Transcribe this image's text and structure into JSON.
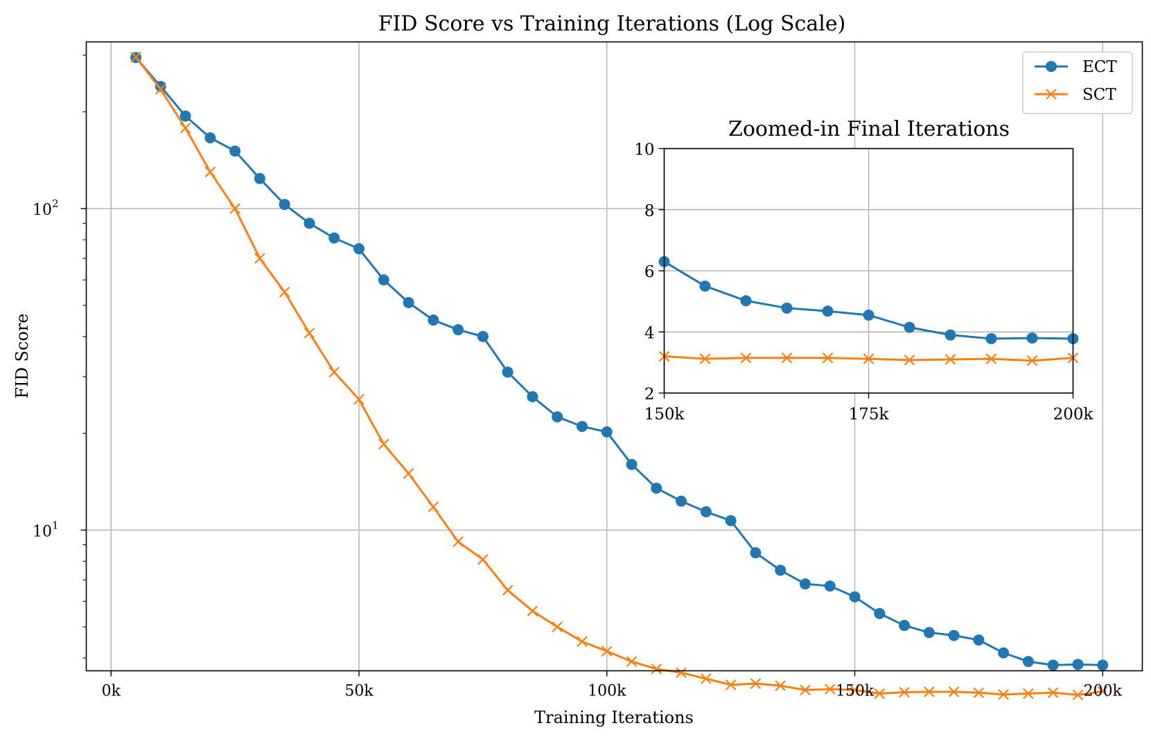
{
  "chart_data": [
    {
      "type": "line",
      "title": "FID Score vs Training Iterations (Log Scale)",
      "xlabel": "Training Iterations",
      "ylabel": "FID Score",
      "yscale": "log",
      "xlim": [
        -5000,
        208000
      ],
      "ylim": [
        3.65,
        330
      ],
      "grid": true,
      "legend": "top-right",
      "x_ticks": [
        {
          "value": 0,
          "label": "0k"
        },
        {
          "value": 50000,
          "label": "50k"
        },
        {
          "value": 100000,
          "label": "100k"
        },
        {
          "value": 150000,
          "label": "150k"
        },
        {
          "value": 200000,
          "label": "200k"
        }
      ],
      "y_ticks": [
        {
          "value": 10,
          "base": "10",
          "exp": "1"
        },
        {
          "value": 100,
          "base": "10",
          "exp": "2"
        }
      ],
      "x": [
        5000,
        10000,
        15000,
        20000,
        25000,
        30000,
        35000,
        40000,
        45000,
        50000,
        55000,
        60000,
        65000,
        70000,
        75000,
        80000,
        85000,
        90000,
        95000,
        100000,
        105000,
        110000,
        115000,
        120000,
        125000,
        130000,
        135000,
        140000,
        145000,
        150000,
        155000,
        160000,
        165000,
        170000,
        175000,
        180000,
        185000,
        190000,
        195000,
        200000
      ],
      "series": [
        {
          "name": "ECT",
          "color": "#1f77b4",
          "marker": "circle",
          "values": [
            295,
            240,
            194,
            166,
            151,
            124,
            103,
            90,
            81,
            75,
            60,
            51,
            45,
            42,
            40,
            31,
            26,
            22.5,
            21,
            20.2,
            16,
            13.5,
            12.3,
            11.4,
            10.7,
            8.5,
            7.5,
            6.8,
            6.7,
            6.2,
            5.5,
            5.05,
            4.8,
            4.7,
            4.55,
            4.15,
            3.9,
            3.8,
            3.82,
            3.8
          ]
        },
        {
          "name": "SCT",
          "color": "#ff7f0e",
          "marker": "x",
          "values": [
            296,
            235,
            178,
            130,
            100,
            70,
            55,
            41,
            31,
            25.5,
            18.5,
            15,
            11.8,
            9.2,
            8.1,
            6.5,
            5.6,
            5.0,
            4.5,
            4.2,
            3.9,
            3.7,
            3.6,
            3.45,
            3.3,
            3.33,
            3.28,
            3.18,
            3.2,
            3.18,
            3.1,
            3.13,
            3.14,
            3.14,
            3.12,
            3.08,
            3.1,
            3.12,
            3.07,
            3.15
          ]
        }
      ]
    },
    {
      "type": "line",
      "title": "Zoomed-in Final Iterations",
      "xlim": [
        150000,
        200000
      ],
      "ylim": [
        2,
        10
      ],
      "grid": true,
      "x_ticks": [
        {
          "value": 150000,
          "label": "150k"
        },
        {
          "value": 175000,
          "label": "175k"
        },
        {
          "value": 200000,
          "label": "200k"
        }
      ],
      "y_ticks": [
        {
          "value": 2,
          "label": "2"
        },
        {
          "value": 4,
          "label": "4"
        },
        {
          "value": 6,
          "label": "6"
        },
        {
          "value": 8,
          "label": "8"
        },
        {
          "value": 10,
          "label": "10"
        }
      ],
      "x": [
        150000,
        155000,
        160000,
        165000,
        170000,
        175000,
        180000,
        185000,
        190000,
        195000,
        200000
      ],
      "series": [
        {
          "name": "ECT",
          "color": "#1f77b4",
          "marker": "circle",
          "values": [
            6.3,
            5.5,
            5.02,
            4.78,
            4.68,
            4.55,
            4.15,
            3.9,
            3.78,
            3.8,
            3.78
          ]
        },
        {
          "name": "SCT",
          "color": "#ff7f0e",
          "marker": "x",
          "values": [
            3.2,
            3.12,
            3.15,
            3.15,
            3.15,
            3.12,
            3.08,
            3.1,
            3.12,
            3.06,
            3.15
          ]
        }
      ]
    }
  ]
}
